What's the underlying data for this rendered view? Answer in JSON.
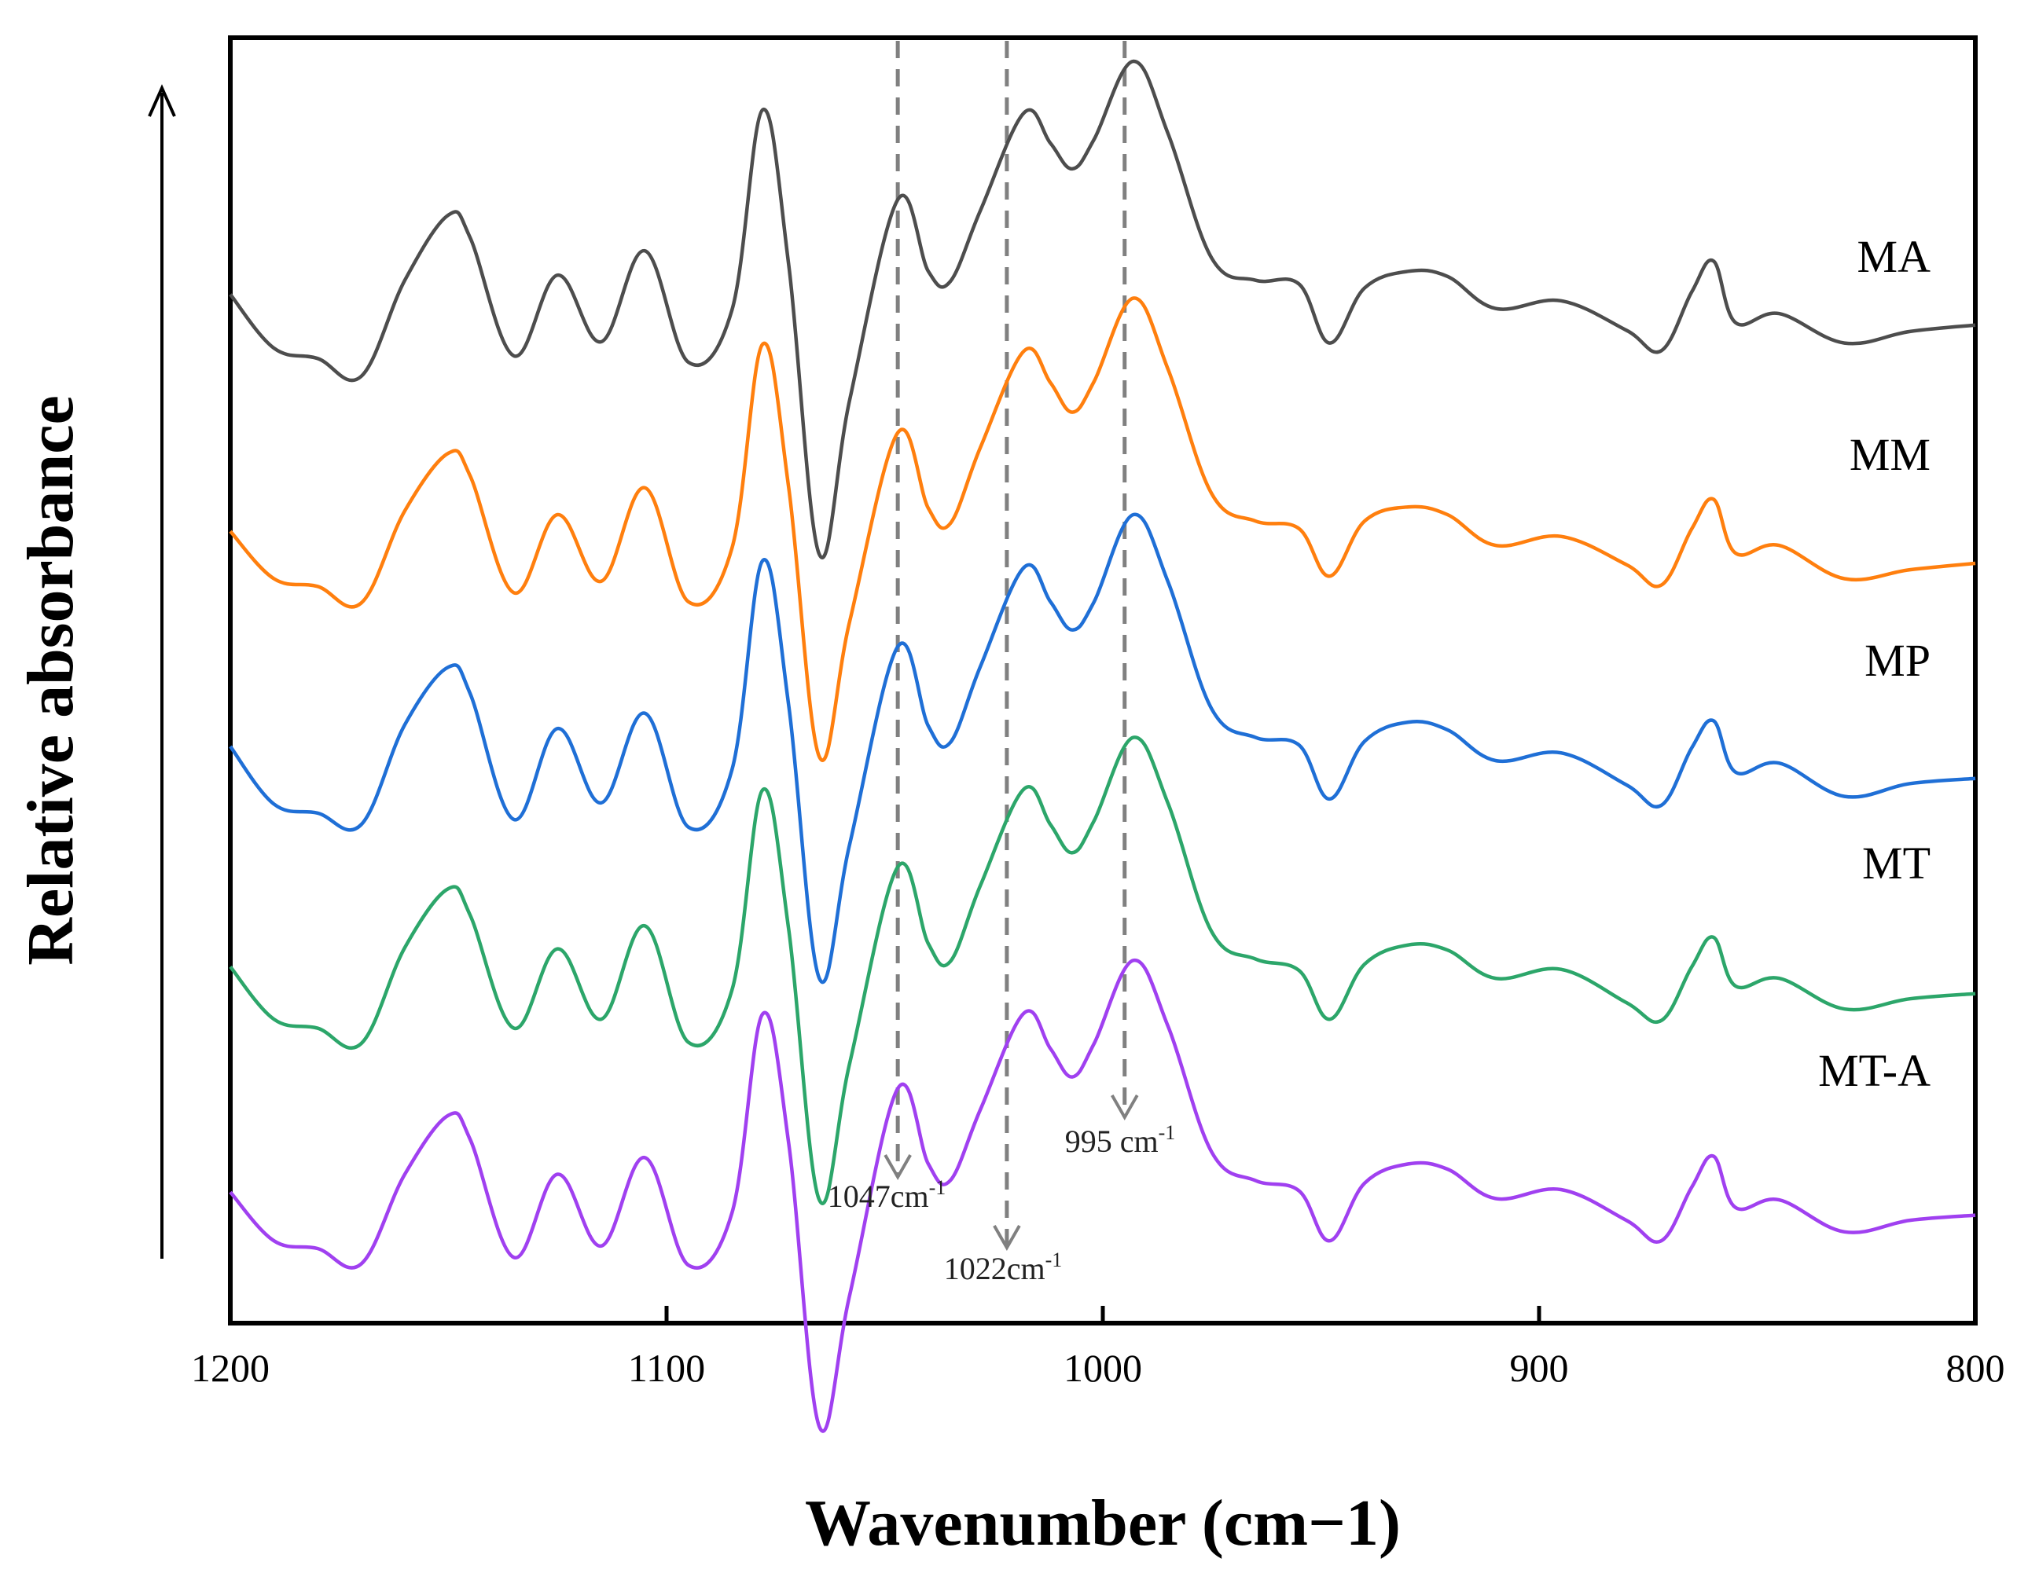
{
  "chart_data": {
    "type": "line",
    "title": "",
    "xlabel": "Wavenumber (cm−1)",
    "ylabel": "Relative absorbance",
    "xlim": [
      1200,
      800
    ],
    "x_reversed": true,
    "xticks": [
      "1200",
      "1100",
      "1000",
      "900",
      "800"
    ],
    "y_ticks_shown": false,
    "grid": false,
    "y_units": "relative absorbance, stacked offsets (arbitrary units)",
    "x": [
      1200,
      1190,
      1180,
      1170,
      1160,
      1150,
      1145,
      1135,
      1125,
      1115,
      1105,
      1095,
      1085,
      1078,
      1072,
      1065,
      1058,
      1047,
      1040,
      1035,
      1028,
      1018,
      1012,
      1007,
      1002,
      993,
      985,
      975,
      965,
      955,
      948,
      940,
      930,
      921,
      910,
      895,
      880,
      872,
      865,
      860,
      855,
      845,
      830,
      815,
      800
    ],
    "series": [
      {
        "name": "MA",
        "color": "#4d4d4d",
        "values": [
          7.45,
          7.03,
          6.95,
          6.81,
          7.56,
          8.07,
          7.89,
          6.97,
          7.6,
          7.08,
          7.79,
          6.92,
          7.33,
          8.89,
          7.68,
          5.42,
          6.63,
          8.19,
          7.63,
          7.55,
          8.11,
          8.87,
          8.63,
          8.43,
          8.66,
          9.27,
          8.7,
          7.73,
          7.56,
          7.53,
          7.07,
          7.5,
          7.63,
          7.59,
          7.34,
          7.4,
          7.17,
          7.01,
          7.47,
          7.71,
          7.23,
          7.3,
          7.07,
          7.16,
          7.21
        ]
      },
      {
        "name": "MM",
        "color": "#ff7f0e",
        "values": [
          5.6,
          5.23,
          5.17,
          5.04,
          5.76,
          6.21,
          6.03,
          5.12,
          5.73,
          5.21,
          5.94,
          5.05,
          5.47,
          7.06,
          5.94,
          3.84,
          4.9,
          6.37,
          5.78,
          5.66,
          6.26,
          7.01,
          6.76,
          6.53,
          6.77,
          7.42,
          6.86,
          5.89,
          5.68,
          5.62,
          5.25,
          5.68,
          5.79,
          5.73,
          5.49,
          5.56,
          5.34,
          5.18,
          5.62,
          5.85,
          5.43,
          5.49,
          5.23,
          5.3,
          5.35
        ]
      },
      {
        "name": "MP",
        "color": "#1f6fd6",
        "values": [
          3.92,
          3.47,
          3.4,
          3.31,
          4.09,
          4.54,
          4.33,
          3.35,
          4.06,
          3.48,
          4.18,
          3.29,
          3.74,
          5.37,
          4.24,
          2.11,
          3.16,
          4.7,
          4.08,
          3.95,
          4.55,
          5.32,
          5.05,
          4.83,
          5.05,
          5.73,
          5.2,
          4.21,
          3.99,
          3.93,
          3.51,
          3.96,
          4.11,
          4.05,
          3.81,
          3.87,
          3.62,
          3.46,
          3.91,
          4.12,
          3.72,
          3.79,
          3.53,
          3.63,
          3.67
        ]
      },
      {
        "name": "MT",
        "color": "#2ca66a",
        "values": [
          2.2,
          1.79,
          1.72,
          1.6,
          2.35,
          2.81,
          2.6,
          1.72,
          2.34,
          1.79,
          2.52,
          1.61,
          2.02,
          3.58,
          2.49,
          0.38,
          1.45,
          2.98,
          2.38,
          2.24,
          2.84,
          3.59,
          3.31,
          3.09,
          3.34,
          3.99,
          3.47,
          2.47,
          2.26,
          2.17,
          1.79,
          2.22,
          2.37,
          2.33,
          2.11,
          2.18,
          1.92,
          1.78,
          2.2,
          2.43,
          2.05,
          2.11,
          1.87,
          1.95,
          1.99
        ]
      },
      {
        "name": "MT-A",
        "color": "#a040f0",
        "values": [
          0.44,
          0.06,
          0.0,
          -0.12,
          0.58,
          1.04,
          0.85,
          -0.07,
          0.58,
          0.02,
          0.71,
          -0.13,
          0.28,
          1.83,
          0.82,
          -1.39,
          -0.36,
          1.25,
          0.66,
          0.53,
          1.09,
          1.84,
          1.56,
          1.34,
          1.6,
          2.25,
          1.73,
          0.75,
          0.53,
          0.45,
          0.06,
          0.51,
          0.66,
          0.62,
          0.39,
          0.46,
          0.22,
          0.06,
          0.48,
          0.72,
          0.32,
          0.38,
          0.13,
          0.22,
          0.26
        ]
      }
    ],
    "annotations": [
      {
        "label": "1047cm",
        "sup": "-1",
        "x": 1047
      },
      {
        "label": "1022cm",
        "sup": "-1",
        "x": 1022
      },
      {
        "label": "995 cm",
        "sup": "-1",
        "x": 995
      }
    ],
    "arrow_direction": "up"
  },
  "colors": {
    "axis": "#000000",
    "annotation": "#808080"
  }
}
